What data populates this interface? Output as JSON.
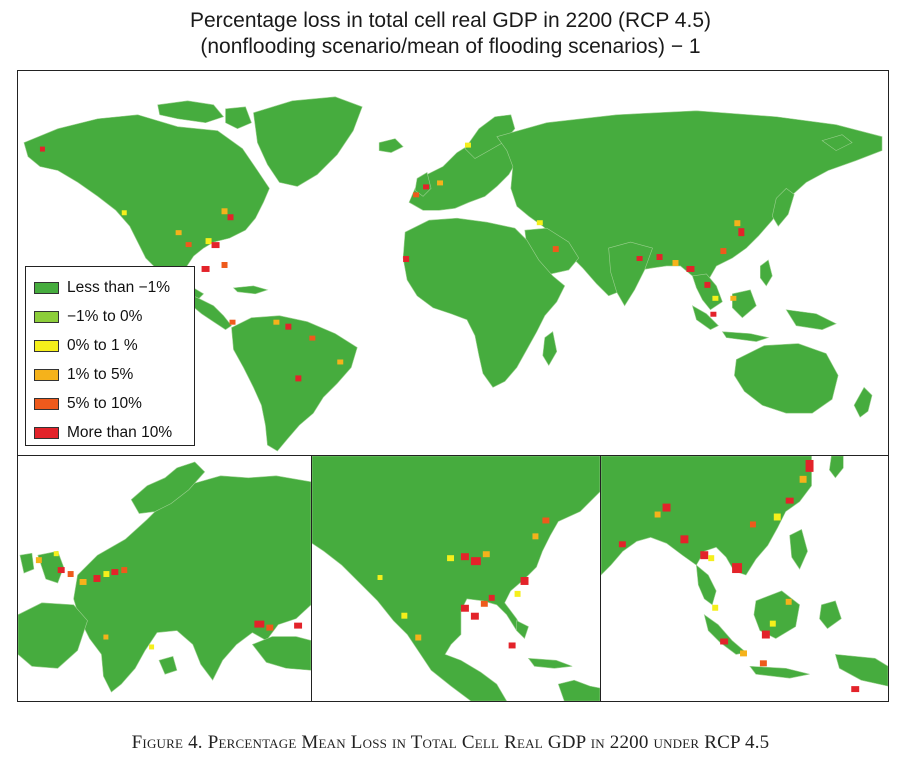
{
  "title": {
    "line1": "Percentage loss in total cell real GDP in 2200 (RCP 4.5)",
    "line2": "(nonflooding scenario/mean of flooding scenarios) − 1"
  },
  "legend": {
    "items": [
      {
        "label": "Less than −1%",
        "color": "#46ac3e"
      },
      {
        "label": "−1% to 0%",
        "color": "#8ccd3a"
      },
      {
        "label": "0% to 1 %",
        "color": "#f5ef1b"
      },
      {
        "label": "1% to 5%",
        "color": "#f5b21b"
      },
      {
        "label": "5% to 10%",
        "color": "#ee5a1c"
      },
      {
        "label": "More than 10%",
        "color": "#e3232a"
      }
    ]
  },
  "colors": {
    "land": "#46ac3e",
    "borders": "#9bd08f",
    "water": "#ffffff"
  },
  "panels": {
    "world": "world-map",
    "europe": "europe-inset",
    "north_america": "north-america-inset",
    "southeast_asia": "southeast-asia-inset"
  },
  "caption": {
    "text": "Figure 4. Percentage Mean Loss in Total Cell Real GDP in 2200 under RCP 4.5"
  }
}
